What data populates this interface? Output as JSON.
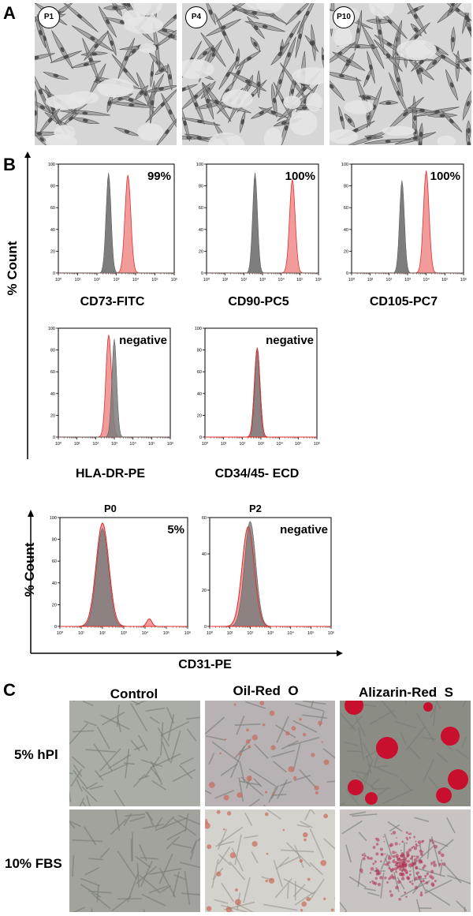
{
  "panels": {
    "a": "A",
    "b": "B",
    "c": "C"
  },
  "passages": [
    "P1",
    "P4",
    "P10"
  ],
  "y_axis_label": "% Count",
  "colors": {
    "control": "#7d7d7d",
    "sample": "#f08a8a",
    "sample_edge": "#e03030",
    "stain_red": "#c8102e"
  },
  "cd31": {
    "xlabel": "CD31-PE",
    "passages": [
      "P0",
      "P2"
    ]
  },
  "panel_c": {
    "columns": [
      "Control",
      "Oil-Red  O",
      "Alizarin-Red  S"
    ],
    "rows": [
      "5% hPl",
      "10% FBS"
    ]
  },
  "chart_data": [
    {
      "type": "histogram",
      "marker": "CD73-FITC",
      "annotation": "99%",
      "ylim": [
        0,
        100
      ],
      "yticks": [
        "100",
        "80",
        "60",
        "40",
        "20",
        "0"
      ],
      "series": [
        {
          "name": "control",
          "log10_peak": 2.6,
          "peak_pct": 92
        },
        {
          "name": "sample",
          "log10_peak": 3.6,
          "peak_pct": 90
        }
      ]
    },
    {
      "type": "histogram",
      "marker": "CD90-PC5",
      "annotation": "100%",
      "ylim": [
        0,
        100
      ],
      "yticks": [
        "100",
        "80",
        "60",
        "40",
        "20",
        "0"
      ],
      "series": [
        {
          "name": "control",
          "log10_peak": 2.6,
          "peak_pct": 92
        },
        {
          "name": "sample",
          "log10_peak": 4.6,
          "peak_pct": 86
        }
      ]
    },
    {
      "type": "histogram",
      "marker": "CD105-PC7",
      "annotation": "100%",
      "ylim": [
        0,
        100
      ],
      "yticks": [
        "100",
        "80",
        "60",
        "40",
        "20",
        "0"
      ],
      "series": [
        {
          "name": "control",
          "log10_peak": 2.7,
          "peak_pct": 85
        },
        {
          "name": "sample",
          "log10_peak": 4.0,
          "peak_pct": 94
        }
      ]
    },
    {
      "type": "histogram",
      "marker": "HLA-DR-PE",
      "annotation": "negative",
      "ylim": [
        0,
        100
      ],
      "yticks": [
        "100",
        "80",
        "60",
        "40",
        "20",
        "0"
      ],
      "series": [
        {
          "name": "control",
          "log10_peak": 3.0,
          "peak_pct": 90
        },
        {
          "name": "sample",
          "log10_peak": 2.7,
          "peak_pct": 94
        }
      ]
    },
    {
      "type": "histogram",
      "marker": "CD34/45- ECD",
      "annotation": "negative",
      "ylim": [
        0,
        100
      ],
      "yticks": [
        "100",
        "80",
        "60",
        "40",
        "20",
        "0"
      ],
      "series": [
        {
          "name": "control",
          "log10_peak": 2.8,
          "peak_pct": 82
        },
        {
          "name": "sample",
          "log10_peak": 2.8,
          "peak_pct": 82
        }
      ]
    },
    {
      "type": "histogram",
      "marker": "CD31-PE",
      "passage": "P0",
      "annotation": "5%",
      "ylim": [
        0,
        100
      ],
      "yticks": [
        "100",
        "80",
        "60",
        "40",
        "20",
        "0"
      ],
      "series": [
        {
          "name": "control",
          "log10_peak": 2.0,
          "peak_pct": 90
        },
        {
          "name": "sample",
          "log10_peak": 2.0,
          "peak_pct": 95,
          "secondary_peak_log10": 4.2,
          "secondary_peak_pct": 7
        }
      ]
    },
    {
      "type": "histogram",
      "marker": "CD31-PE",
      "passage": "P2",
      "annotation": "negative",
      "ylim": [
        0,
        60
      ],
      "yticks": [
        "60",
        "40",
        "20",
        "0"
      ],
      "series": [
        {
          "name": "control",
          "log10_peak": 2.0,
          "peak_pct": 58
        },
        {
          "name": "sample",
          "log10_peak": 1.9,
          "peak_pct": 55
        }
      ]
    }
  ],
  "x_ticks_log": [
    "10⁰",
    "10¹",
    "10²",
    "10³",
    "10⁴",
    "10⁵",
    "10⁶"
  ]
}
